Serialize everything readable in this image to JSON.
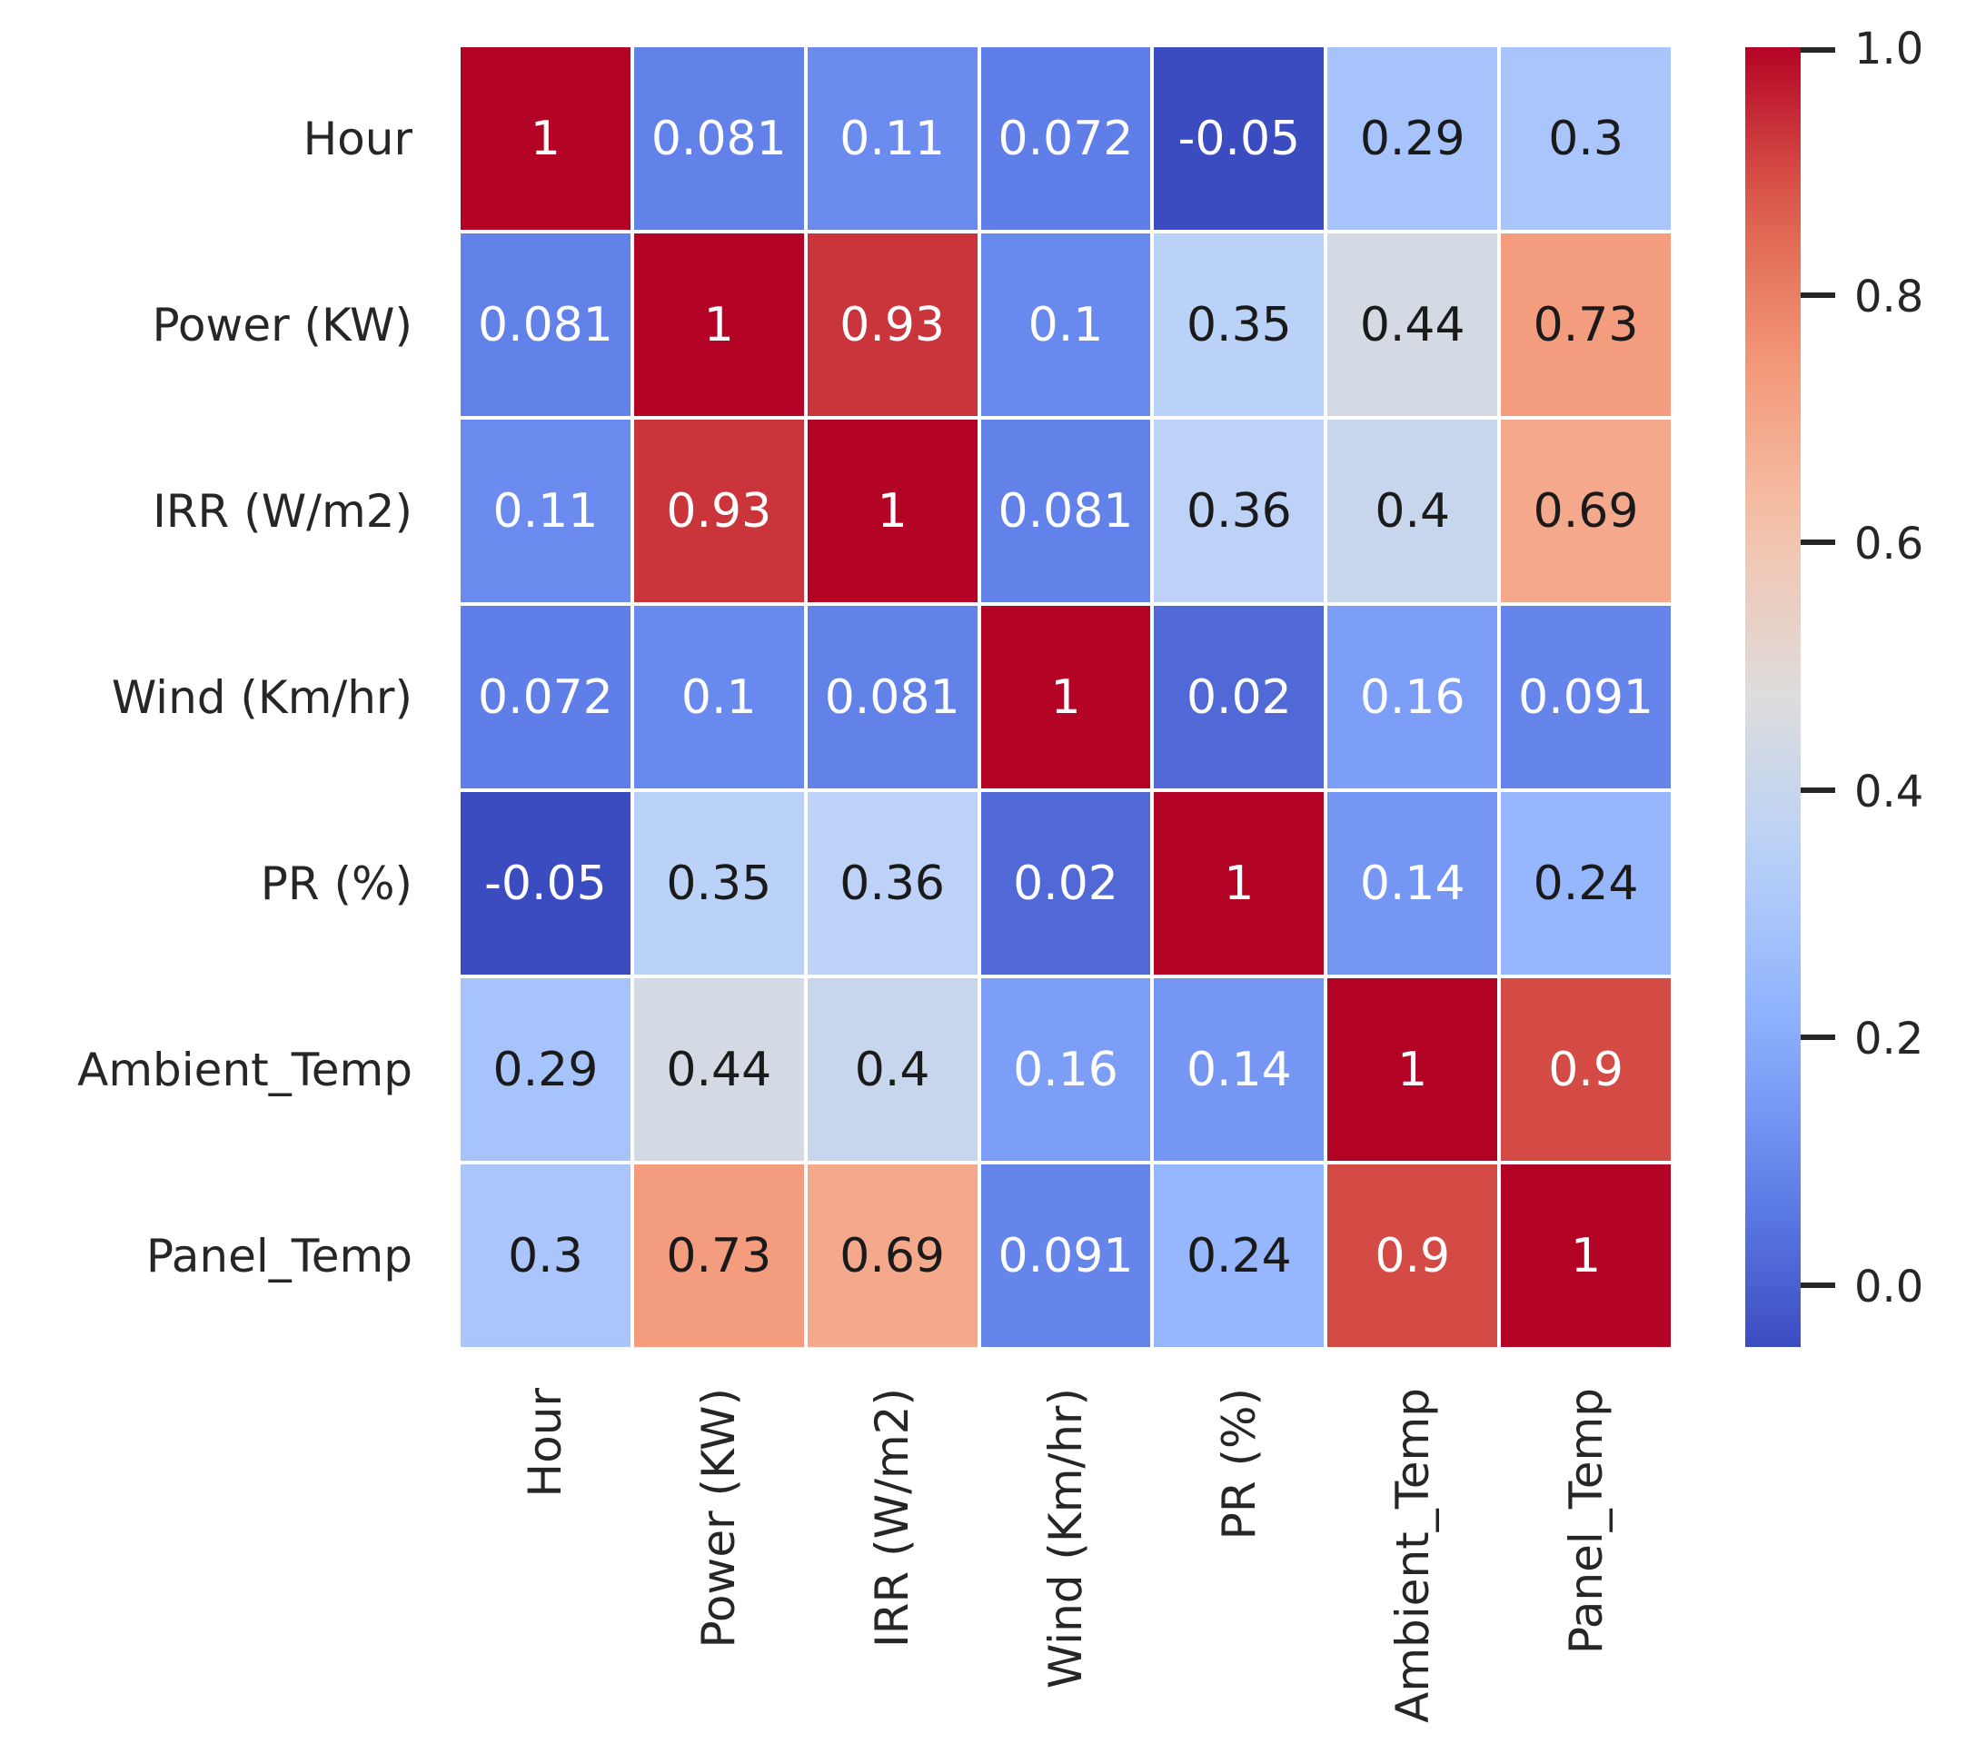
{
  "chart_data": {
    "type": "heatmap",
    "variables": [
      "Hour",
      "Power (KW)",
      "IRR (W/m2)",
      "Wind (Km/hr)",
      "PR (%)",
      "Ambient_Temp",
      "Panel_Temp"
    ],
    "matrix": [
      [
        1,
        0.081,
        0.11,
        0.072,
        -0.05,
        0.29,
        0.3
      ],
      [
        0.081,
        1,
        0.93,
        0.1,
        0.35,
        0.44,
        0.73
      ],
      [
        0.11,
        0.93,
        1,
        0.081,
        0.36,
        0.4,
        0.69
      ],
      [
        0.072,
        0.1,
        0.081,
        1,
        0.02,
        0.16,
        0.091
      ],
      [
        -0.05,
        0.35,
        0.36,
        0.02,
        1,
        0.14,
        0.24
      ],
      [
        0.29,
        0.44,
        0.4,
        0.16,
        0.14,
        1,
        0.9
      ],
      [
        0.3,
        0.73,
        0.69,
        0.091,
        0.24,
        0.9,
        1
      ]
    ],
    "colormap": {
      "name": "coolwarm",
      "vmin": -0.05,
      "vmax": 1.0,
      "anchors": [
        {
          "t": 0.0,
          "rgb": [
            59,
            76,
            192
          ]
        },
        {
          "t": 0.125,
          "rgb": [
            98,
            130,
            234
          ]
        },
        {
          "t": 0.25,
          "rgb": [
            141,
            176,
            254
          ]
        },
        {
          "t": 0.375,
          "rgb": [
            184,
            208,
            249
          ]
        },
        {
          "t": 0.5,
          "rgb": [
            221,
            221,
            221
          ]
        },
        {
          "t": 0.625,
          "rgb": [
            245,
            196,
            173
          ]
        },
        {
          "t": 0.75,
          "rgb": [
            244,
            154,
            123
          ]
        },
        {
          "t": 0.875,
          "rgb": [
            222,
            96,
            77
          ]
        },
        {
          "t": 1.0,
          "rgb": [
            180,
            4,
            38
          ]
        }
      ]
    },
    "colorbar": {
      "position": "right",
      "tick_labels": [
        "1.0",
        "0.8",
        "0.6",
        "0.4",
        "0.2",
        "0.0"
      ],
      "tick_values": [
        1.0,
        0.8,
        0.6,
        0.4,
        0.2,
        0.0
      ]
    },
    "grid_line_color": "#ffffff",
    "axis_label_color": "#262626",
    "annotation_colors": {
      "on_dark_cells": "#ffffff",
      "on_light_cells": "#1a1a1a"
    },
    "layout_hints": {
      "x_tick_rotation": 90,
      "y_tick_rotation": 0,
      "legend": "colorbar-right",
      "grid": "off",
      "title": ""
    }
  }
}
